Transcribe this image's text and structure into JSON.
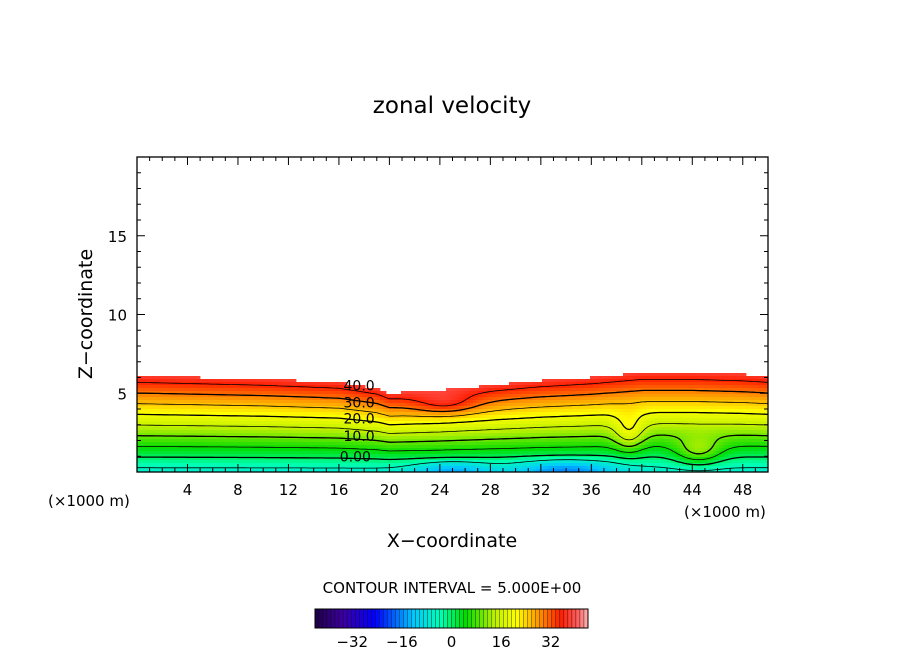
{
  "chart_data": {
    "type": "contour",
    "title": "zonal velocity",
    "xlabel": "X−coordinate",
    "ylabel": "Z−coordinate",
    "x_unit_left": "(×1000 m)",
    "x_unit_right": "(×1000 m)",
    "xlim": [
      0,
      50
    ],
    "ylim": [
      0,
      20
    ],
    "x_ticks": [
      4,
      8,
      12,
      16,
      20,
      24,
      28,
      32,
      36,
      40,
      44,
      48
    ],
    "x_tick_labels": [
      "4",
      "8",
      "12",
      "16",
      "20",
      "24",
      "28",
      "32",
      "36",
      "40",
      "44",
      "48"
    ],
    "y_ticks": [
      5,
      10,
      15
    ],
    "y_tick_labels": [
      "5",
      "10",
      "15"
    ],
    "contour_labels": [
      {
        "text": "40.0",
        "x": 17.6,
        "z": 5.5
      },
      {
        "text": "30.0",
        "x": 17.6,
        "z": 4.4
      },
      {
        "text": "20.0",
        "x": 17.6,
        "z": 3.4
      },
      {
        "text": "10.0",
        "x": 17.6,
        "z": 2.3
      },
      {
        "text": "0.00",
        "x": 17.3,
        "z": 1.0
      }
    ],
    "contour_interval_text": "CONTOUR INTERVAL = 5.000E+00",
    "colorbar": {
      "range": [
        -44,
        44
      ],
      "ticks": [
        -32,
        -16,
        0,
        16,
        32
      ],
      "tick_labels": [
        "−32",
        "−16",
        "0",
        "16",
        "32"
      ]
    },
    "top_of_shear_layer_z": {
      "x": [
        0,
        10,
        16,
        19,
        20,
        24,
        28,
        32,
        36,
        40,
        44,
        48,
        50
      ],
      "z": [
        6.1,
        5.9,
        5.7,
        5.3,
        5.0,
        5.2,
        5.5,
        5.8,
        6.0,
        6.3,
        6.3,
        6.2,
        6.1
      ]
    }
  }
}
